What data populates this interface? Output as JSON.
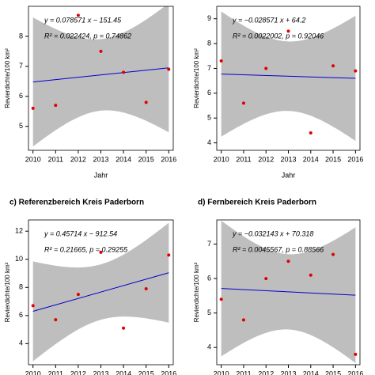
{
  "chart_data": [
    {
      "type": "scatter",
      "ylabel": "Revierdichte/100 km²",
      "xlabel": "Jahr",
      "equation": "y = 0.078571 x − 151.45",
      "stats": "R² = 0.022424,  p = 0.74862",
      "x": [
        2010,
        2011,
        2012,
        2013,
        2014,
        2015,
        2016
      ],
      "values": [
        5.6,
        5.7,
        8.7,
        7.5,
        6.8,
        5.8,
        6.9
      ],
      "xlim": [
        2009.8,
        2016.2
      ],
      "xticks": [
        2010,
        2011,
        2012,
        2013,
        2014,
        2015,
        2016
      ],
      "ylim": [
        4.2,
        9.0
      ],
      "yticks": [
        5,
        6,
        7,
        8
      ],
      "color": "#e00000",
      "line_color": "#0000cc",
      "band_color": "#bebebe"
    },
    {
      "type": "scatter",
      "ylabel": "Revierdichte/100 km²",
      "xlabel": "Jahr",
      "equation": "y = −0.028571 x + 64.2",
      "stats": "R² = 0.0022002,  p = 0.92046",
      "x": [
        2010,
        2011,
        2012,
        2013,
        2014,
        2015,
        2016
      ],
      "values": [
        7.3,
        5.6,
        7.0,
        8.5,
        4.4,
        7.1,
        6.9
      ],
      "xlim": [
        2009.8,
        2016.2
      ],
      "xticks": [
        2010,
        2011,
        2012,
        2013,
        2014,
        2015,
        2016
      ],
      "ylim": [
        3.7,
        9.5
      ],
      "yticks": [
        4,
        5,
        6,
        7,
        8,
        9
      ],
      "color": "#e00000",
      "line_color": "#0000cc",
      "band_color": "#bebebe"
    },
    {
      "type": "scatter",
      "title": "c)   Referenzbereich Kreis Paderborn",
      "ylabel": "Revierdichte/100 km²",
      "equation": "y = 0.45714 x − 912.54",
      "stats": "R² = 0.21665,  p = 0.29255",
      "x": [
        2010,
        2011,
        2012,
        2013,
        2014,
        2015,
        2016
      ],
      "values": [
        6.7,
        5.7,
        7.5,
        10.5,
        5.1,
        7.9,
        10.3
      ],
      "xlim": [
        2009.8,
        2016.2
      ],
      "xticks": [
        2010,
        2011,
        2012,
        2013,
        2014,
        2015,
        2016
      ],
      "ylim": [
        2.5,
        12.8
      ],
      "yticks": [
        4,
        6,
        8,
        10,
        12
      ],
      "color": "#e00000",
      "line_color": "#0000cc",
      "band_color": "#bebebe"
    },
    {
      "type": "scatter",
      "title": "d)   Fernbereich Kreis Paderborn",
      "ylabel": "Revierdichte/100 km²",
      "equation": "y = −0.032143 x + 70.318",
      "stats": "R² = 0.0045567,  p = 0.88566",
      "x": [
        2010,
        2011,
        2012,
        2013,
        2014,
        2015,
        2016
      ],
      "values": [
        5.4,
        4.8,
        6.0,
        6.5,
        6.1,
        6.7,
        3.8
      ],
      "xlim": [
        2009.8,
        2016.2
      ],
      "xticks": [
        2010,
        2011,
        2012,
        2013,
        2014,
        2015,
        2016
      ],
      "ylim": [
        3.5,
        7.7
      ],
      "yticks": [
        4,
        5,
        6,
        7
      ],
      "color": "#e00000",
      "line_color": "#0000cc",
      "band_color": "#bebebe"
    }
  ]
}
